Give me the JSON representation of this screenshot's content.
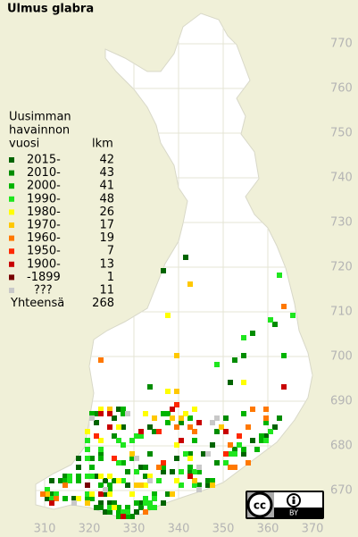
{
  "title": "Ulmus glabra",
  "legend": {
    "heading": [
      "Uusimman",
      "havainnon",
      "vuosi"
    ],
    "count_heading": "lkm",
    "items": [
      {
        "label": "2015-",
        "count": 42,
        "color": "#006400"
      },
      {
        "label": "2010-",
        "count": 43,
        "color": "#008c00"
      },
      {
        "label": "2000-",
        "count": 41,
        "color": "#00b400"
      },
      {
        "label": "1990-",
        "count": 48,
        "color": "#1ee61e"
      },
      {
        "label": "1980-",
        "count": 26,
        "color": "#ffff00"
      },
      {
        "label": "1970-",
        "count": 17,
        "color": "#ffc800"
      },
      {
        "label": "1960-",
        "count": 19,
        "color": "#ff7800"
      },
      {
        "label": "1950-",
        "count": 7,
        "color": "#ff2800"
      },
      {
        "label": "1900-",
        "count": 13,
        "color": "#c80000"
      },
      {
        "label": "-1899",
        "count": 1,
        "color": "#780000"
      },
      {
        "label": "???",
        "count": 11,
        "color": "#c8c8c8"
      }
    ],
    "total_label": "Yhteensä",
    "total": 268
  },
  "map": {
    "xticks": [
      310,
      320,
      330,
      340,
      350,
      360,
      370
    ],
    "yticks": [
      770,
      760,
      750,
      740,
      730,
      720,
      710,
      700,
      690,
      680,
      670
    ]
  },
  "license": {
    "cc": "cc",
    "by": "BY"
  }
}
